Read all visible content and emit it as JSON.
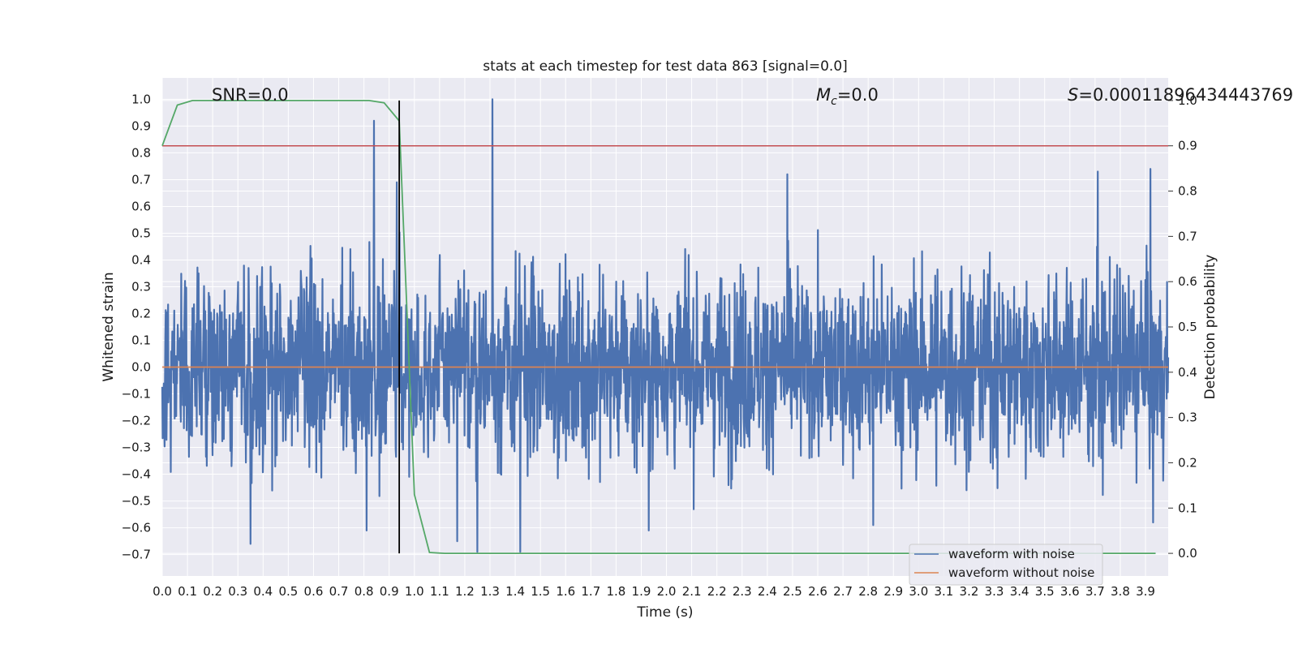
{
  "chart_data": {
    "type": "line",
    "title": "stats at each timestep for test data 863 [signal=0.0]",
    "xlabel": "Time (s)",
    "ylabel": "Whitened strain",
    "y2label": "Detection probability",
    "xlim": [
      0.0,
      3.99
    ],
    "ylim": [
      -0.78,
      1.08
    ],
    "y2lim": [
      -0.05,
      1.05
    ],
    "x_ticks": [
      "0.0",
      "0.1",
      "0.2",
      "0.3",
      "0.4",
      "0.5",
      "0.6",
      "0.7",
      "0.8",
      "0.9",
      "1.0",
      "1.1",
      "1.2",
      "1.3",
      "1.4",
      "1.5",
      "1.6",
      "1.7",
      "1.8",
      "1.9",
      "2.0",
      "2.1",
      "2.2",
      "2.3",
      "2.4",
      "2.5",
      "2.6",
      "2.7",
      "2.8",
      "2.9",
      "3.0",
      "3.1",
      "3.2",
      "3.3",
      "3.4",
      "3.5",
      "3.6",
      "3.7",
      "3.8",
      "3.9"
    ],
    "y_ticks": [
      "−0.7",
      "−0.6",
      "−0.5",
      "−0.4",
      "−0.3",
      "−0.2",
      "−0.1",
      "0.0",
      "0.1",
      "0.2",
      "0.3",
      "0.4",
      "0.5",
      "0.6",
      "0.7",
      "0.8",
      "0.9",
      "1.0"
    ],
    "y2_ticks": [
      "0.0",
      "0.1",
      "0.2",
      "0.3",
      "0.4",
      "0.5",
      "0.6",
      "0.7",
      "0.8",
      "0.9",
      "1.0"
    ],
    "annotations": {
      "snr": "SNR=0.0",
      "mc_symbol": "M",
      "mc_sub": "c",
      "mc_value": "=0.0",
      "s_symbol": "S",
      "s_value": "=0.00011896434443769"
    },
    "series": [
      {
        "name": "waveform with noise",
        "axis": "left",
        "color": "#4c72b0",
        "description": "whitened strain noise, dense oscillation",
        "range": [
          -0.69,
          1.0
        ],
        "notable_peaks": [
          {
            "x": 0.84,
            "y": 0.92
          },
          {
            "x": 0.93,
            "y": 0.69
          },
          {
            "x": 1.31,
            "y": 1.0
          },
          {
            "x": 2.48,
            "y": 0.72
          },
          {
            "x": 3.71,
            "y": 0.73
          },
          {
            "x": 3.92,
            "y": 0.74
          }
        ],
        "notable_troughs": [
          {
            "x": 0.35,
            "y": -0.66
          },
          {
            "x": 0.81,
            "y": -0.61
          },
          {
            "x": 1.17,
            "y": -0.65
          },
          {
            "x": 1.25,
            "y": -0.69
          },
          {
            "x": 1.42,
            "y": -0.69
          },
          {
            "x": 1.93,
            "y": -0.61
          },
          {
            "x": 2.82,
            "y": -0.59
          },
          {
            "x": 3.93,
            "y": -0.58
          }
        ]
      },
      {
        "name": "waveform without noise",
        "axis": "left",
        "color": "#dd8452",
        "x": [
          0.0,
          3.99
        ],
        "y": [
          0.0,
          0.0
        ]
      },
      {
        "name": "detection probability",
        "axis": "right",
        "color": "#55a868",
        "x": [
          0.0,
          0.06,
          0.12,
          0.82,
          0.88,
          0.94,
          1.0,
          1.06,
          1.12,
          3.94
        ],
        "y": [
          0.9,
          0.99,
          1.0,
          1.0,
          0.995,
          0.955,
          0.13,
          0.002,
          0.0,
          0.0
        ]
      }
    ],
    "threshold": {
      "axis": "right",
      "value": 0.9,
      "color": "#c44e52"
    },
    "marker_line": {
      "x": 0.94,
      "color": "#000000"
    },
    "legend": {
      "position": "bottom-right",
      "entries": [
        {
          "label": "waveform with noise",
          "color": "#4c72b0"
        },
        {
          "label": "waveform without noise",
          "color": "#dd8452"
        }
      ]
    },
    "grid": true
  },
  "colors": {
    "plot_background": "#eaeaf2",
    "grid": "#ffffff",
    "noise": "#4c72b0",
    "clean": "#dd8452",
    "probability": "#55a868",
    "threshold": "#c44e52"
  }
}
